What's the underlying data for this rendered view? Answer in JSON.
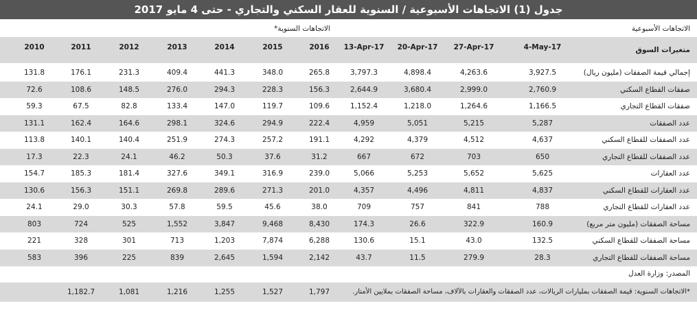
{
  "header": {
    "title": "جدول (1) الاتجاهات الأسبوعية / السنوية للعقار السكني والتجاري - حتى 4 مايو 2017"
  },
  "table": {
    "weekly_label": "الاتجاهات الأسبوعية",
    "yearly_label": "الاتجاهات السنوية*",
    "columns": [
      "متغيرات السوق",
      "4-May-17",
      "27-Apr-17",
      "20-Apr-17",
      "13-Apr-17",
      "2016",
      "2015",
      "2014",
      "2013",
      "2012",
      "2011",
      "2010"
    ],
    "rows": [
      [
        "إجمالي قيمة الصفقات (مليون ريال)",
        "3,927.5",
        "4,263.6",
        "4,898.4",
        "3,797.3",
        "265.8",
        "348.0",
        "441.3",
        "409.4",
        "231.3",
        "176.1",
        "131.8"
      ],
      [
        "صفقات القطاع السكني",
        "2,760.9",
        "2,999.0",
        "3,680.4",
        "2,644.9",
        "156.3",
        "228.3",
        "294.3",
        "276.0",
        "148.5",
        "108.6",
        "72.6"
      ],
      [
        "صفقات القطاع التجاري",
        "1,166.5",
        "1,264.6",
        "1,218.0",
        "1,152.4",
        "109.6",
        "119.7",
        "147.0",
        "133.4",
        "82.8",
        "67.5",
        "59.3"
      ],
      [
        "عدد الصفقات",
        "5,287",
        "5,215",
        "5,051",
        "4,959",
        "222.4",
        "294.9",
        "324.6",
        "298.1",
        "164.6",
        "162.4",
        "131.1"
      ],
      [
        "عدد الصفقات للقطاع السكني",
        "4,637",
        "4,512",
        "4,379",
        "4,292",
        "191.1",
        "257.2",
        "274.3",
        "251.9",
        "140.4",
        "140.1",
        "113.8"
      ],
      [
        "عدد الصفقات للقطاع التجاري",
        "650",
        "703",
        "672",
        "667",
        "31.2",
        "37.6",
        "50.3",
        "46.2",
        "24.1",
        "22.3",
        "17.3"
      ],
      [
        "عدد العقارات",
        "5,625",
        "5,652",
        "5,253",
        "5,066",
        "239.0",
        "316.9",
        "349.1",
        "327.6",
        "181.4",
        "185.3",
        "154.7"
      ],
      [
        "عدد العقارات للقطاع السكني",
        "4,837",
        "4,811",
        "4,496",
        "4,357",
        "201.0",
        "271.3",
        "289.6",
        "269.8",
        "151.1",
        "156.3",
        "130.6"
      ],
      [
        "عدد العقارات للقطاع التجاري",
        "788",
        "841",
        "757",
        "709",
        "38.0",
        "45.6",
        "59.5",
        "57.8",
        "30.3",
        "29.0",
        "24.1"
      ],
      [
        "مساحة الصفقات (مليون متر مربع)",
        "160.9",
        "322.9",
        "26.6",
        "174.3",
        "8,430",
        "9,468",
        "3,847",
        "1,552",
        "525",
        "724",
        "803"
      ],
      [
        "مساحة الصفقات للقطاع السكني",
        "132.5",
        "43.0",
        "15.1",
        "130.6",
        "6,288",
        "7,874",
        "1,203",
        "713",
        "301",
        "328",
        "221"
      ],
      [
        "مساحة الصفقات للقطاع التجاري",
        "28.3",
        "279.9",
        "11.5",
        "43.7",
        "2,142",
        "1,594",
        "2,645",
        "839",
        "225",
        "396",
        "583"
      ]
    ]
  },
  "source": "المصدر: وزارة العدل",
  "footnote": {
    "text": "*الاتجاهات السنوية: قيمة الصفقات بمليارات الريالات، عدد الصفقات والعقارات بالآلاف، مساحة الصفقات بملايين الأمتار.",
    "values": [
      "1,797",
      "1,527",
      "1,255",
      "1,216",
      "1,081",
      "1,182.7"
    ]
  }
}
